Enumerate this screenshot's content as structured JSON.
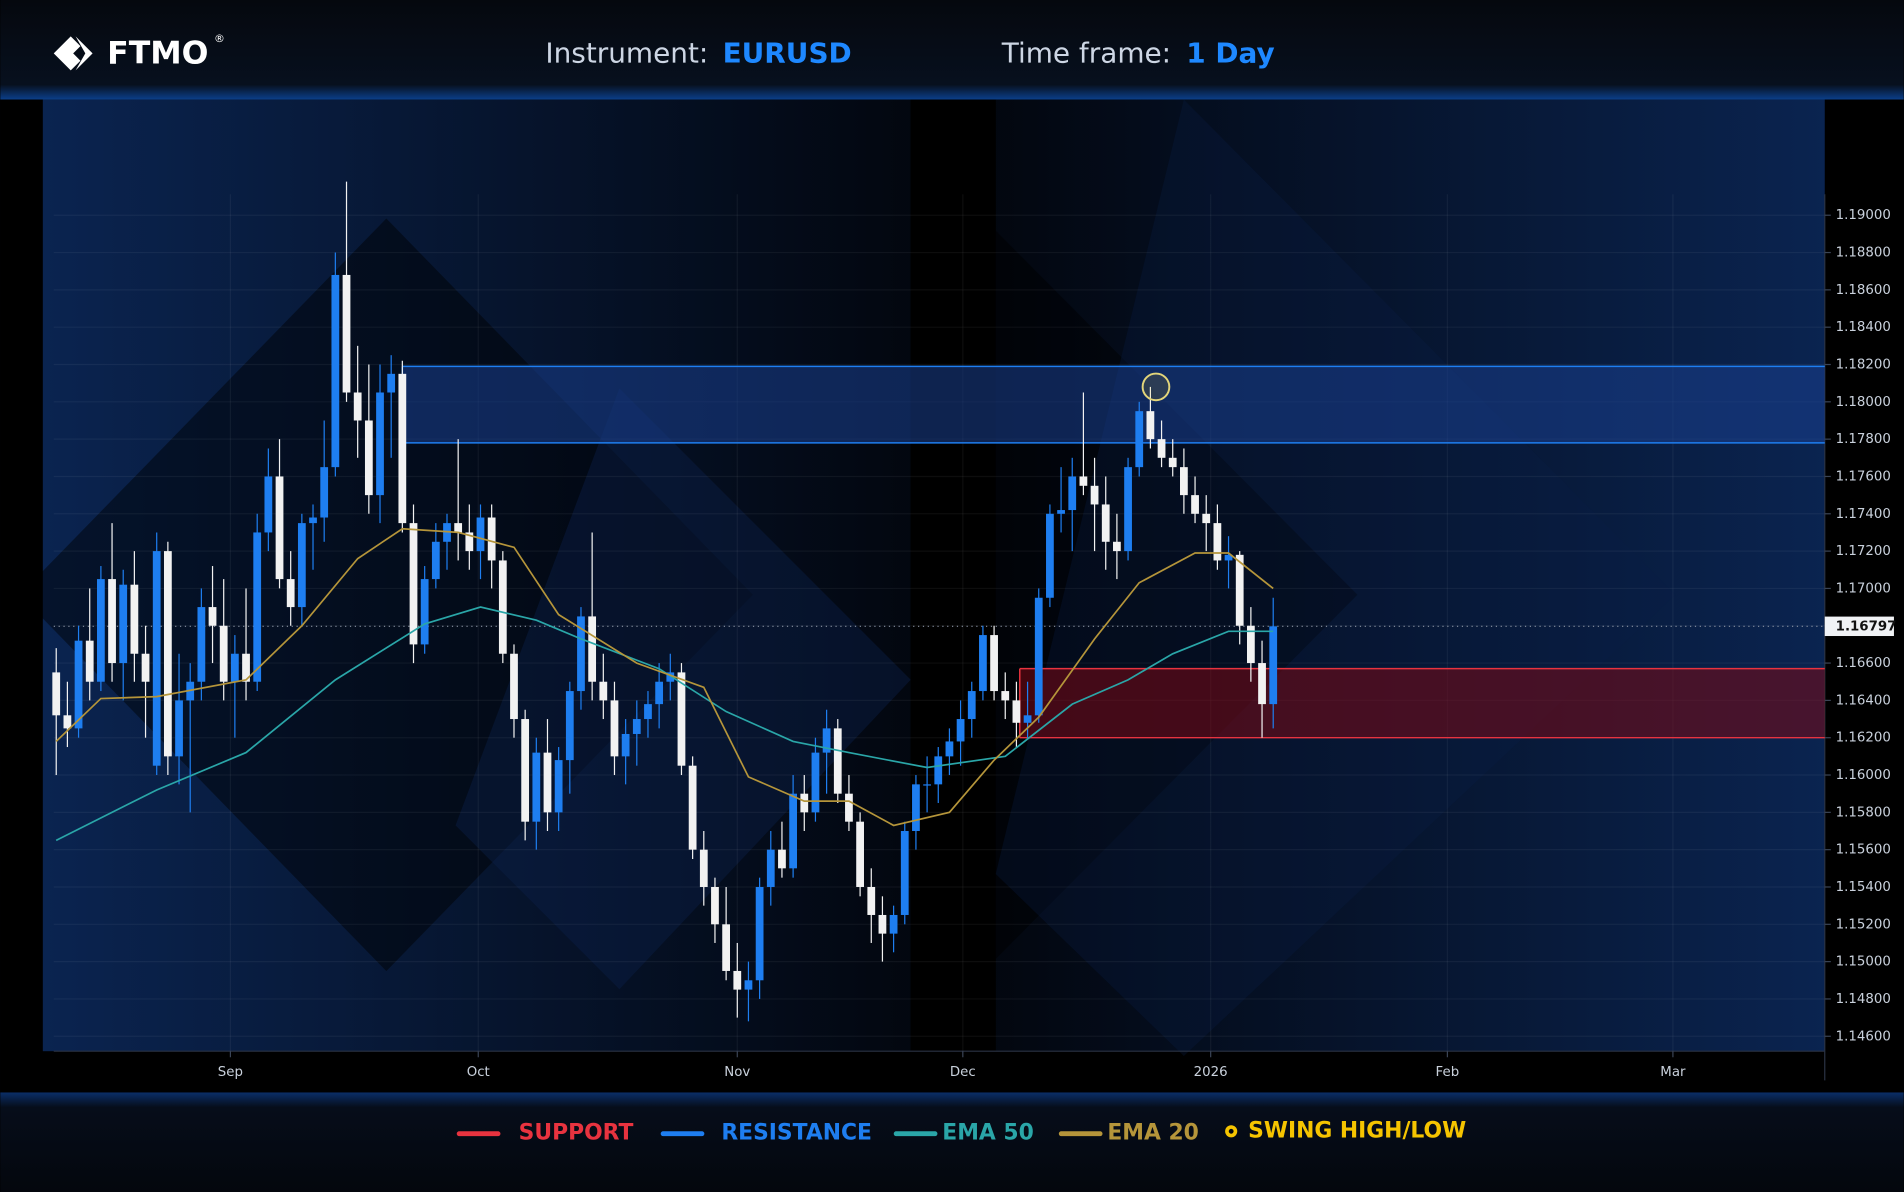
{
  "header": {
    "logo": "FTMO",
    "logo_mark": "®",
    "instrument_label": "Instrument:",
    "instrument": "EURUSD",
    "timeframe_label": "Time frame:",
    "timeframe": "1 Day"
  },
  "chart_data": {
    "type": "candlestick",
    "up_color": "#1e7ef0",
    "down_color": "#f2f2f2",
    "open": [
      1.1655,
      1.1632,
      1.1625,
      1.1672,
      1.165,
      1.1705,
      1.166,
      1.1702,
      1.1665,
      1.1605,
      1.172,
      1.161,
      1.164,
      1.165,
      1.169,
      1.168,
      1.165,
      1.1665,
      1.165,
      1.173,
      1.176,
      1.1705,
      1.169,
      1.1735,
      1.1738,
      1.1765,
      1.1868,
      1.1805,
      1.179,
      1.175,
      1.1805,
      1.1815,
      1.1735,
      1.167,
      1.1705,
      1.1725,
      1.1735,
      1.173,
      1.172,
      1.1738,
      1.1715,
      1.1665,
      1.163,
      1.1575,
      1.1612,
      1.158,
      1.1608,
      1.1645,
      1.1685,
      1.165,
      1.164,
      1.161,
      1.1622,
      1.163,
      1.1638,
      1.165,
      1.1655,
      1.1605,
      1.156,
      1.154,
      1.152,
      1.1495,
      1.1485,
      1.149,
      1.154,
      1.156,
      1.155,
      1.159,
      1.158,
      1.1612,
      1.1625,
      1.159,
      1.1575,
      1.154,
      1.1525,
      1.1515,
      1.1525,
      1.157,
      1.1595,
      1.1595,
      1.161,
      1.1618,
      1.163,
      1.1645,
      1.1675,
      1.1645,
      1.164,
      1.1628,
      1.1632,
      1.1695,
      1.174,
      1.1742,
      1.176,
      1.1755,
      1.1745,
      1.1725,
      1.172,
      1.1765,
      1.1795,
      1.178,
      1.177,
      1.1765,
      1.175,
      1.174,
      1.1735,
      1.1715,
      1.1718,
      1.168,
      1.166,
      1.1638
    ],
    "high": [
      1.1668,
      1.165,
      1.168,
      1.17,
      1.1712,
      1.1735,
      1.171,
      1.172,
      1.168,
      1.173,
      1.1725,
      1.1665,
      1.166,
      1.17,
      1.1712,
      1.1705,
      1.1675,
      1.17,
      1.174,
      1.1775,
      1.178,
      1.172,
      1.174,
      1.1745,
      1.179,
      1.188,
      1.1918,
      1.183,
      1.182,
      1.182,
      1.1825,
      1.1822,
      1.1745,
      1.1712,
      1.1735,
      1.174,
      1.178,
      1.1745,
      1.1745,
      1.1745,
      1.172,
      1.167,
      1.1635,
      1.162,
      1.163,
      1.1615,
      1.165,
      1.169,
      1.173,
      1.1665,
      1.165,
      1.163,
      1.164,
      1.1645,
      1.166,
      1.1665,
      1.166,
      1.161,
      1.157,
      1.1545,
      1.154,
      1.151,
      1.15,
      1.1545,
      1.157,
      1.1575,
      1.16,
      1.16,
      1.162,
      1.1635,
      1.163,
      1.16,
      1.158,
      1.155,
      1.1535,
      1.153,
      1.1575,
      1.16,
      1.161,
      1.1615,
      1.1625,
      1.164,
      1.165,
      1.168,
      1.168,
      1.1655,
      1.165,
      1.165,
      1.17,
      1.1745,
      1.1765,
      1.177,
      1.1805,
      1.177,
      1.176,
      1.174,
      1.177,
      1.18,
      1.1808,
      1.179,
      1.178,
      1.1775,
      1.176,
      1.175,
      1.1745,
      1.1728,
      1.172,
      1.169,
      1.1672,
      1.1695
    ],
    "low": [
      1.16,
      1.1615,
      1.162,
      1.164,
      1.1645,
      1.165,
      1.164,
      1.165,
      1.162,
      1.16,
      1.16,
      1.1595,
      1.158,
      1.164,
      1.166,
      1.164,
      1.162,
      1.164,
      1.1645,
      1.172,
      1.17,
      1.168,
      1.168,
      1.171,
      1.1725,
      1.176,
      1.18,
      1.177,
      1.174,
      1.1735,
      1.177,
      1.173,
      1.166,
      1.1665,
      1.17,
      1.171,
      1.1715,
      1.171,
      1.1705,
      1.17,
      1.166,
      1.162,
      1.1565,
      1.156,
      1.157,
      1.157,
      1.159,
      1.1635,
      1.164,
      1.163,
      1.16,
      1.1595,
      1.1605,
      1.162,
      1.1625,
      1.164,
      1.16,
      1.1555,
      1.153,
      1.151,
      1.149,
      1.147,
      1.1468,
      1.148,
      1.153,
      1.1545,
      1.1545,
      1.157,
      1.1575,
      1.159,
      1.1585,
      1.157,
      1.1535,
      1.151,
      1.15,
      1.1505,
      1.152,
      1.156,
      1.158,
      1.1585,
      1.16,
      1.1605,
      1.162,
      1.164,
      1.164,
      1.163,
      1.1615,
      1.162,
      1.1628,
      1.169,
      1.173,
      1.172,
      1.175,
      1.172,
      1.171,
      1.1705,
      1.1715,
      1.176,
      1.1775,
      1.1765,
      1.176,
      1.174,
      1.1735,
      1.172,
      1.171,
      1.17,
      1.167,
      1.165,
      1.162,
      1.1625
    ],
    "close": [
      1.1632,
      1.1625,
      1.1672,
      1.165,
      1.1705,
      1.166,
      1.1702,
      1.1665,
      1.165,
      1.172,
      1.161,
      1.164,
      1.165,
      1.169,
      1.168,
      1.165,
      1.1665,
      1.165,
      1.173,
      1.176,
      1.1705,
      1.169,
      1.1735,
      1.1738,
      1.1765,
      1.1868,
      1.1805,
      1.179,
      1.175,
      1.1805,
      1.1815,
      1.1735,
      1.167,
      1.1705,
      1.1725,
      1.1735,
      1.173,
      1.172,
      1.1738,
      1.1715,
      1.1665,
      1.163,
      1.1575,
      1.1612,
      1.158,
      1.1608,
      1.1645,
      1.1685,
      1.165,
      1.164,
      1.161,
      1.1622,
      1.163,
      1.1638,
      1.165,
      1.1655,
      1.1605,
      1.156,
      1.154,
      1.152,
      1.1495,
      1.1485,
      1.149,
      1.154,
      1.156,
      1.155,
      1.159,
      1.158,
      1.1612,
      1.1625,
      1.159,
      1.1575,
      1.154,
      1.1525,
      1.1515,
      1.1525,
      1.157,
      1.1595,
      1.1595,
      1.161,
      1.1618,
      1.163,
      1.1645,
      1.1675,
      1.1645,
      1.164,
      1.1628,
      1.1632,
      1.1695,
      1.174,
      1.1742,
      1.176,
      1.1755,
      1.1745,
      1.1725,
      1.172,
      1.1765,
      1.1795,
      1.178,
      1.177,
      1.1765,
      1.175,
      1.174,
      1.1735,
      1.1715,
      1.1718,
      1.168,
      1.166,
      1.1638,
      1.16797
    ],
    "last_price": 1.16797,
    "xlim": [
      -1.2,
      158.4
    ],
    "xticks": [
      {
        "value": 15.6,
        "label": "Sep"
      },
      {
        "value": 37.8,
        "label": "Oct"
      },
      {
        "value": 61,
        "label": "Nov"
      },
      {
        "value": 81.2,
        "label": "Dec"
      },
      {
        "value": 103.4,
        "label": "2026"
      },
      {
        "value": 124.6,
        "label": "Feb"
      },
      {
        "value": 144.8,
        "label": "Mar"
      }
    ],
    "ylim": [
      1.1452,
      1.1962
    ],
    "yticks": [
      {
        "value": 1.146,
        "label": "1.14600"
      },
      {
        "value": 1.148,
        "label": "1.14800"
      },
      {
        "value": 1.15,
        "label": "1.15000"
      },
      {
        "value": 1.152,
        "label": "1.15200"
      },
      {
        "value": 1.154,
        "label": "1.15400"
      },
      {
        "value": 1.156,
        "label": "1.15600"
      },
      {
        "value": 1.158,
        "label": "1.15800"
      },
      {
        "value": 1.16,
        "label": "1.16000"
      },
      {
        "value": 1.162,
        "label": "1.16200"
      },
      {
        "value": 1.164,
        "label": "1.16400"
      },
      {
        "value": 1.166,
        "label": "1.16600"
      },
      {
        "value": 1.168,
        "label": "1.16800"
      },
      {
        "value": 1.17,
        "label": "1.17000"
      },
      {
        "value": 1.172,
        "label": "1.17200"
      },
      {
        "value": 1.174,
        "label": "1.17400"
      },
      {
        "value": 1.176,
        "label": "1.17600"
      },
      {
        "value": 1.178,
        "label": "1.17800"
      },
      {
        "value": 1.18,
        "label": "1.18000"
      },
      {
        "value": 1.182,
        "label": "1.18200"
      },
      {
        "value": 1.184,
        "label": "1.18400"
      },
      {
        "value": 1.186,
        "label": "1.18600"
      },
      {
        "value": 1.188,
        "label": "1.18800"
      },
      {
        "value": 1.19,
        "label": "1.19000"
      }
    ],
    "grid": true,
    "zones": [
      {
        "name": "SUPPORT",
        "color": "#e8333f",
        "fill": "#7a0a14",
        "start": 86.3,
        "low": 1.162,
        "high": 1.1657
      },
      {
        "name": "RESISTANCE",
        "color": "#1e7ef0",
        "fill": "#1a3f8f",
        "start": 31,
        "low": 1.1778,
        "high": 1.1819
      }
    ],
    "series": [
      {
        "name": "EMA 50",
        "color": "#2aa6a8",
        "x": [
          0,
          9,
          17,
          25,
          33,
          38,
          43,
          47,
          54,
          60,
          66,
          71,
          78,
          85,
          91,
          96,
          100,
          105,
          109
        ],
        "values": [
          1.1565,
          1.1592,
          1.1612,
          1.1651,
          1.1681,
          1.169,
          1.1683,
          1.1673,
          1.1657,
          1.1634,
          1.1618,
          1.1612,
          1.1604,
          1.161,
          1.1638,
          1.1651,
          1.1665,
          1.1677,
          1.1677
        ]
      },
      {
        "name": "EMA 20",
        "color": "#b5953a",
        "x": [
          0,
          4,
          9,
          17,
          22,
          27,
          31,
          36,
          41,
          45,
          52,
          58,
          62,
          67,
          71,
          75,
          80,
          84,
          88,
          93,
          97,
          102,
          105,
          109
        ],
        "values": [
          1.1618,
          1.1641,
          1.1642,
          1.1651,
          1.168,
          1.1716,
          1.1732,
          1.173,
          1.1722,
          1.1686,
          1.166,
          1.1647,
          1.1599,
          1.1586,
          1.1586,
          1.1573,
          1.158,
          1.1608,
          1.1631,
          1.1673,
          1.1703,
          1.1719,
          1.1719,
          1.17
        ]
      }
    ],
    "swing_points": {
      "name": "SWING HIGH/LOW",
      "color": "#f5c400",
      "x": [
        98.5
      ],
      "values": [
        1.1808
      ]
    }
  }
}
